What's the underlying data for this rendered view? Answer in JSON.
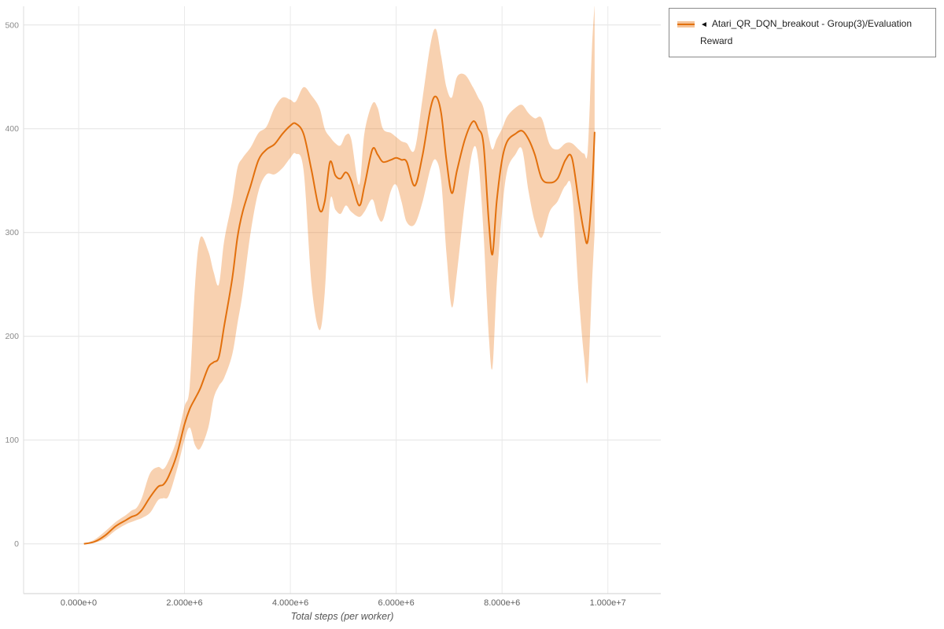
{
  "legend": {
    "marker": "◄",
    "label": "Atari_QR_DQN_breakout - Group(3)/Evaluation Reward"
  },
  "chart_data": {
    "type": "line",
    "title": "",
    "xlabel": "Total steps (per worker)",
    "ylabel": "",
    "grid": true,
    "legend_position": "top-right",
    "x_range": [
      -1040000,
      11000000
    ],
    "y_range": [
      -48,
      518
    ],
    "x_ticks": [
      0,
      2000000,
      4000000,
      6000000,
      8000000,
      10000000
    ],
    "x_tick_labels": [
      "0.000e+0",
      "2.000e+6",
      "4.000e+6",
      "6.000e+6",
      "8.000e+6",
      "1.000e+7"
    ],
    "y_ticks": [
      0,
      100,
      200,
      300,
      400,
      500
    ],
    "colors": {
      "line": "#e2700d",
      "band": "#e8710a",
      "band_opacity": 0.32
    },
    "series": [
      {
        "name": "Atari_QR_DQN_breakout - Group(3)/Evaluation Reward",
        "x": [
          100000,
          300000,
          500000,
          700000,
          900000,
          1000000,
          1100000,
          1200000,
          1350000,
          1500000,
          1600000,
          1700000,
          1850000,
          2000000,
          2100000,
          2200000,
          2300000,
          2450000,
          2550000,
          2650000,
          2750000,
          2900000,
          3000000,
          3100000,
          3250000,
          3400000,
          3550000,
          3700000,
          3850000,
          4000000,
          4100000,
          4250000,
          4400000,
          4550000,
          4650000,
          4750000,
          4850000,
          4950000,
          5050000,
          5150000,
          5300000,
          5400000,
          5550000,
          5650000,
          5750000,
          5900000,
          6000000,
          6100000,
          6200000,
          6350000,
          6500000,
          6650000,
          6750000,
          6850000,
          6950000,
          7050000,
          7150000,
          7300000,
          7450000,
          7550000,
          7650000,
          7750000,
          7820000,
          7900000,
          8000000,
          8100000,
          8250000,
          8380000,
          8500000,
          8620000,
          8750000,
          8900000,
          9050000,
          9200000,
          9320000,
          9450000,
          9550000,
          9620000,
          9700000,
          9750000
        ],
        "mean": [
          0,
          2,
          8,
          17,
          23,
          26,
          28,
          33,
          45,
          55,
          57,
          65,
          85,
          115,
          130,
          140,
          150,
          170,
          175,
          180,
          210,
          255,
          295,
          320,
          345,
          370,
          380,
          385,
          395,
          403,
          405,
          395,
          360,
          322,
          330,
          368,
          355,
          352,
          358,
          350,
          326,
          345,
          380,
          375,
          368,
          370,
          372,
          370,
          368,
          345,
          375,
          420,
          431,
          415,
          370,
          338,
          360,
          390,
          407,
          400,
          385,
          310,
          279,
          330,
          370,
          388,
          395,
          398,
          390,
          375,
          352,
          348,
          352,
          370,
          372,
          330,
          300,
          292,
          340,
          397
        ],
        "lower": [
          0,
          1,
          5,
          13,
          19,
          21,
          23,
          25,
          30,
          42,
          44,
          46,
          70,
          100,
          112,
          95,
          92,
          112,
          140,
          152,
          160,
          182,
          212,
          242,
          300,
          340,
          356,
          356,
          362,
          372,
          376,
          360,
          250,
          206,
          242,
          330,
          322,
          318,
          326,
          320,
          315,
          320,
          332,
          316,
          312,
          340,
          346,
          330,
          310,
          308,
          330,
          362,
          370,
          350,
          280,
          228,
          262,
          330,
          380,
          370,
          300,
          200,
          170,
          250,
          320,
          360,
          375,
          380,
          340,
          310,
          295,
          320,
          330,
          345,
          340,
          240,
          180,
          158,
          250,
          300
        ],
        "upper": [
          0,
          4,
          12,
          21,
          28,
          32,
          35,
          45,
          68,
          74,
          72,
          80,
          100,
          132,
          152,
          250,
          295,
          282,
          262,
          250,
          292,
          330,
          362,
          372,
          382,
          396,
          402,
          420,
          430,
          428,
          426,
          440,
          432,
          420,
          400,
          392,
          386,
          384,
          394,
          390,
          346,
          396,
          424,
          420,
          400,
          396,
          392,
          388,
          386,
          380,
          430,
          482,
          496,
          470,
          440,
          430,
          450,
          452,
          440,
          430,
          420,
          392,
          380,
          390,
          400,
          412,
          420,
          423,
          415,
          410,
          410,
          385,
          380,
          386,
          386,
          380,
          376,
          380,
          478,
          520
        ]
      }
    ]
  }
}
